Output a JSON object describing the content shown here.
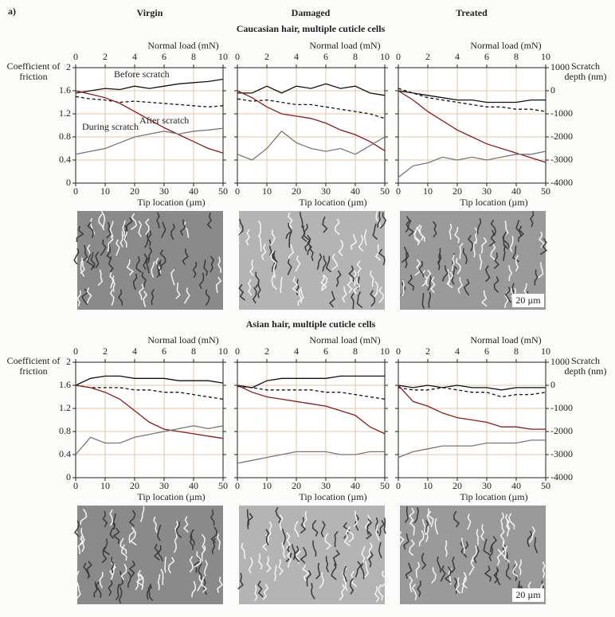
{
  "figure_label": "a)",
  "column_titles": [
    "Virgin",
    "Damaged",
    "Treated"
  ],
  "rows": [
    {
      "title": "Caucasian hair, multiple cuticle cells",
      "scale_bar": "20 µm"
    },
    {
      "title": "Asian hair, multiple cuticle cells",
      "scale_bar": "20 µm"
    }
  ],
  "chart_data": [
    {
      "type": "line",
      "x": [
        0,
        5,
        10,
        15,
        20,
        25,
        30,
        35,
        40,
        45,
        50
      ],
      "xlim": [
        0,
        50
      ],
      "xticks": [
        0,
        10,
        20,
        30,
        40,
        50
      ],
      "xlabel": "Tip location (µm)",
      "x2label": "Normal load (mN)",
      "x2lim": [
        0,
        10
      ],
      "x2ticks": [
        0,
        2,
        4,
        6,
        8,
        10
      ],
      "ylabel": "Coefficient of friction",
      "ylim": [
        0,
        2
      ],
      "yticks": [
        0,
        0.4,
        0.8,
        1.2,
        1.6,
        2
      ],
      "y2lim": [
        -4000,
        1000
      ],
      "y2ticks": [
        1000,
        0,
        -1000,
        -2000,
        -3000,
        -4000
      ],
      "grid": true,
      "series": [
        {
          "name": "Before scratch",
          "color": "#111111",
          "style": "solid",
          "axis": "y2",
          "values": [
            -100,
            0,
            100,
            50,
            200,
            100,
            200,
            300,
            350,
            400,
            500
          ]
        },
        {
          "name": "After scratch",
          "color": "#111111",
          "style": "dashed",
          "axis": "y2",
          "values": [
            -250,
            -350,
            -400,
            -500,
            -450,
            -500,
            -550,
            -600,
            -650,
            -700,
            -650
          ]
        },
        {
          "name": "During scratch",
          "color": "#8b1a1a",
          "style": "solid",
          "axis": "y2",
          "values": [
            0,
            -150,
            -300,
            -550,
            -900,
            -1250,
            -1600,
            -1900,
            -2200,
            -2500,
            -2700
          ]
        },
        {
          "color": "#777777",
          "style": "solid",
          "axis": "y",
          "values": [
            0.5,
            0.55,
            0.6,
            0.7,
            0.8,
            0.85,
            0.9,
            0.85,
            0.9,
            0.92,
            0.95
          ]
        }
      ]
    },
    {
      "type": "line",
      "x": [
        0,
        5,
        10,
        15,
        20,
        25,
        30,
        35,
        40,
        45,
        50
      ],
      "xlim": [
        0,
        50
      ],
      "xticks": [
        0,
        10,
        20,
        30,
        40,
        50
      ],
      "xlabel": "Tip location (µm)",
      "x2label": "Normal load (mN)",
      "x2lim": [
        0,
        10
      ],
      "x2ticks": [
        0,
        2,
        4,
        6,
        8,
        10
      ],
      "ylim": [
        0,
        2
      ],
      "yticks": [
        0,
        0.4,
        0.8,
        1.2,
        1.6,
        2
      ],
      "y2lim": [
        -4000,
        1000
      ],
      "y2ticks": [
        1000,
        0,
        -1000,
        -2000,
        -3000,
        -4000
      ],
      "grid": true,
      "series": [
        {
          "color": "#111111",
          "style": "solid",
          "axis": "y2",
          "values": [
            -100,
            -100,
            200,
            -100,
            200,
            100,
            300,
            100,
            200,
            -100,
            -200
          ]
        },
        {
          "color": "#111111",
          "style": "dashed",
          "axis": "y2",
          "values": [
            -350,
            -450,
            -400,
            -500,
            -600,
            -600,
            -700,
            -800,
            -900,
            -1000,
            -1200
          ]
        },
        {
          "color": "#8b1a1a",
          "style": "solid",
          "axis": "y2",
          "values": [
            0,
            -300,
            -700,
            -1000,
            -1100,
            -1200,
            -1400,
            -1700,
            -1900,
            -2200,
            -2600
          ]
        },
        {
          "color": "#777777",
          "style": "solid",
          "axis": "y",
          "values": [
            0.5,
            0.4,
            0.6,
            0.9,
            0.7,
            0.6,
            0.55,
            0.6,
            0.5,
            0.65,
            0.8
          ]
        }
      ]
    },
    {
      "type": "line",
      "x": [
        0,
        5,
        10,
        15,
        20,
        25,
        30,
        35,
        40,
        45,
        50
      ],
      "xlim": [
        0,
        50
      ],
      "xticks": [
        0,
        10,
        20,
        30,
        40,
        50
      ],
      "xlabel": "Tip location (µm)",
      "x2label": "Normal load (mN)",
      "x2lim": [
        0,
        10
      ],
      "x2ticks": [
        0,
        2,
        4,
        6,
        8,
        10
      ],
      "ylim": [
        0,
        2
      ],
      "yticks": [
        0,
        0.4,
        0.8,
        1.2,
        1.6,
        2
      ],
      "y2label": "Scratch depth (nm)",
      "y2lim": [
        -4000,
        1000
      ],
      "y2ticks": [
        1000,
        0,
        -1000,
        -2000,
        -3000,
        -4000
      ],
      "grid": true,
      "series": [
        {
          "color": "#111111",
          "style": "solid",
          "axis": "y2",
          "values": [
            0,
            -100,
            -200,
            -300,
            -400,
            -400,
            -500,
            -500,
            -500,
            -400,
            -400
          ]
        },
        {
          "color": "#111111",
          "style": "dashed",
          "axis": "y2",
          "values": [
            100,
            -100,
            -300,
            -400,
            -500,
            -600,
            -700,
            -700,
            -800,
            -800,
            -900
          ]
        },
        {
          "color": "#8b1a1a",
          "style": "solid",
          "axis": "y2",
          "values": [
            0,
            -400,
            -900,
            -1300,
            -1700,
            -2000,
            -2300,
            -2500,
            -2700,
            -2900,
            -3100
          ]
        },
        {
          "color": "#777777",
          "style": "solid",
          "axis": "y",
          "values": [
            0.1,
            0.3,
            0.35,
            0.45,
            0.4,
            0.45,
            0.4,
            0.45,
            0.5,
            0.5,
            0.55
          ]
        }
      ]
    },
    {
      "type": "line",
      "x": [
        0,
        5,
        10,
        15,
        20,
        25,
        30,
        35,
        40,
        45,
        50
      ],
      "xlim": [
        0,
        50
      ],
      "xticks": [
        0,
        10,
        20,
        30,
        40,
        50
      ],
      "xlabel": "Tip location (µm)",
      "x2label": "Normal load (mN)",
      "x2lim": [
        0,
        10
      ],
      "x2ticks": [
        0,
        2,
        4,
        6,
        8,
        10
      ],
      "ylabel": "Coefficient of friction",
      "ylim": [
        0,
        2
      ],
      "yticks": [
        0,
        0.4,
        0.8,
        1.2,
        1.6,
        2
      ],
      "y2lim": [
        -4000,
        1000
      ],
      "y2ticks": [
        1000,
        0,
        -1000,
        -2000,
        -3000,
        -4000
      ],
      "grid": true,
      "series": [
        {
          "color": "#111111",
          "style": "solid",
          "axis": "y2",
          "values": [
            0,
            300,
            400,
            400,
            300,
            300,
            300,
            200,
            200,
            200,
            100
          ]
        },
        {
          "color": "#111111",
          "style": "dashed",
          "axis": "y2",
          "values": [
            0,
            -100,
            -100,
            -100,
            -200,
            -200,
            -300,
            -300,
            -400,
            -500,
            -600
          ]
        },
        {
          "color": "#8b1a1a",
          "style": "solid",
          "axis": "y2",
          "values": [
            0,
            -100,
            -300,
            -600,
            -1100,
            -1600,
            -1900,
            -2000,
            -2100,
            -2200,
            -2300
          ]
        },
        {
          "color": "#777777",
          "style": "solid",
          "axis": "y",
          "values": [
            0.4,
            0.7,
            0.6,
            0.6,
            0.7,
            0.75,
            0.8,
            0.85,
            0.9,
            0.85,
            0.9
          ]
        }
      ]
    },
    {
      "type": "line",
      "x": [
        0,
        5,
        10,
        15,
        20,
        25,
        30,
        35,
        40,
        45,
        50
      ],
      "xlim": [
        0,
        50
      ],
      "xticks": [
        0,
        10,
        20,
        30,
        40,
        50
      ],
      "xlabel": "Tip location (µm)",
      "x2label": "Normal load (mN)",
      "x2lim": [
        0,
        10
      ],
      "x2ticks": [
        0,
        2,
        4,
        6,
        8,
        10
      ],
      "ylim": [
        0,
        2
      ],
      "yticks": [
        0,
        0.4,
        0.8,
        1.2,
        1.6,
        2
      ],
      "y2lim": [
        -4000,
        1000
      ],
      "y2ticks": [
        1000,
        0,
        -1000,
        -2000,
        -3000,
        -4000
      ],
      "grid": true,
      "series": [
        {
          "color": "#111111",
          "style": "solid",
          "axis": "y2",
          "values": [
            0,
            -100,
            200,
            300,
            300,
            300,
            300,
            400,
            400,
            400,
            400
          ]
        },
        {
          "color": "#111111",
          "style": "dashed",
          "axis": "y2",
          "values": [
            -50,
            -100,
            -200,
            -200,
            -200,
            -200,
            -300,
            -300,
            -400,
            -500,
            -600
          ]
        },
        {
          "color": "#8b1a1a",
          "style": "solid",
          "axis": "y2",
          "values": [
            0,
            -300,
            -500,
            -600,
            -700,
            -800,
            -900,
            -1100,
            -1300,
            -1800,
            -2100
          ]
        },
        {
          "color": "#777777",
          "style": "solid",
          "axis": "y",
          "values": [
            0.25,
            0.3,
            0.35,
            0.4,
            0.45,
            0.45,
            0.45,
            0.4,
            0.4,
            0.45,
            0.45
          ]
        }
      ]
    },
    {
      "type": "line",
      "x": [
        0,
        5,
        10,
        15,
        20,
        25,
        30,
        35,
        40,
        45,
        50
      ],
      "xlim": [
        0,
        50
      ],
      "xticks": [
        0,
        10,
        20,
        30,
        40,
        50
      ],
      "xlabel": "Tip location (µm)",
      "x2label": "Normal load (mN)",
      "x2lim": [
        0,
        10
      ],
      "x2ticks": [
        0,
        2,
        4,
        6,
        8,
        10
      ],
      "ylim": [
        0,
        2
      ],
      "yticks": [
        0,
        0.4,
        0.8,
        1.2,
        1.6,
        2
      ],
      "y2label": "Scratch depth (nm)",
      "y2lim": [
        -4000,
        1000
      ],
      "y2ticks": [
        1000,
        0,
        -1000,
        -2000,
        -3000,
        -4000
      ],
      "grid": true,
      "series": [
        {
          "color": "#111111",
          "style": "solid",
          "axis": "y2",
          "values": [
            0,
            -100,
            0,
            -100,
            0,
            -100,
            -100,
            -200,
            -100,
            -100,
            -100
          ]
        },
        {
          "color": "#111111",
          "style": "dashed",
          "axis": "y2",
          "values": [
            -100,
            -200,
            -200,
            -100,
            -200,
            -300,
            -300,
            -500,
            -400,
            -400,
            -300
          ]
        },
        {
          "color": "#8b1a1a",
          "style": "solid",
          "axis": "y2",
          "values": [
            0,
            -700,
            -900,
            -1200,
            -1400,
            -1500,
            -1600,
            -1800,
            -1800,
            -1900,
            -1900
          ]
        },
        {
          "color": "#777777",
          "style": "solid",
          "axis": "y",
          "values": [
            0.35,
            0.45,
            0.5,
            0.55,
            0.55,
            0.55,
            0.6,
            0.6,
            0.6,
            0.65,
            0.65
          ]
        }
      ]
    }
  ]
}
